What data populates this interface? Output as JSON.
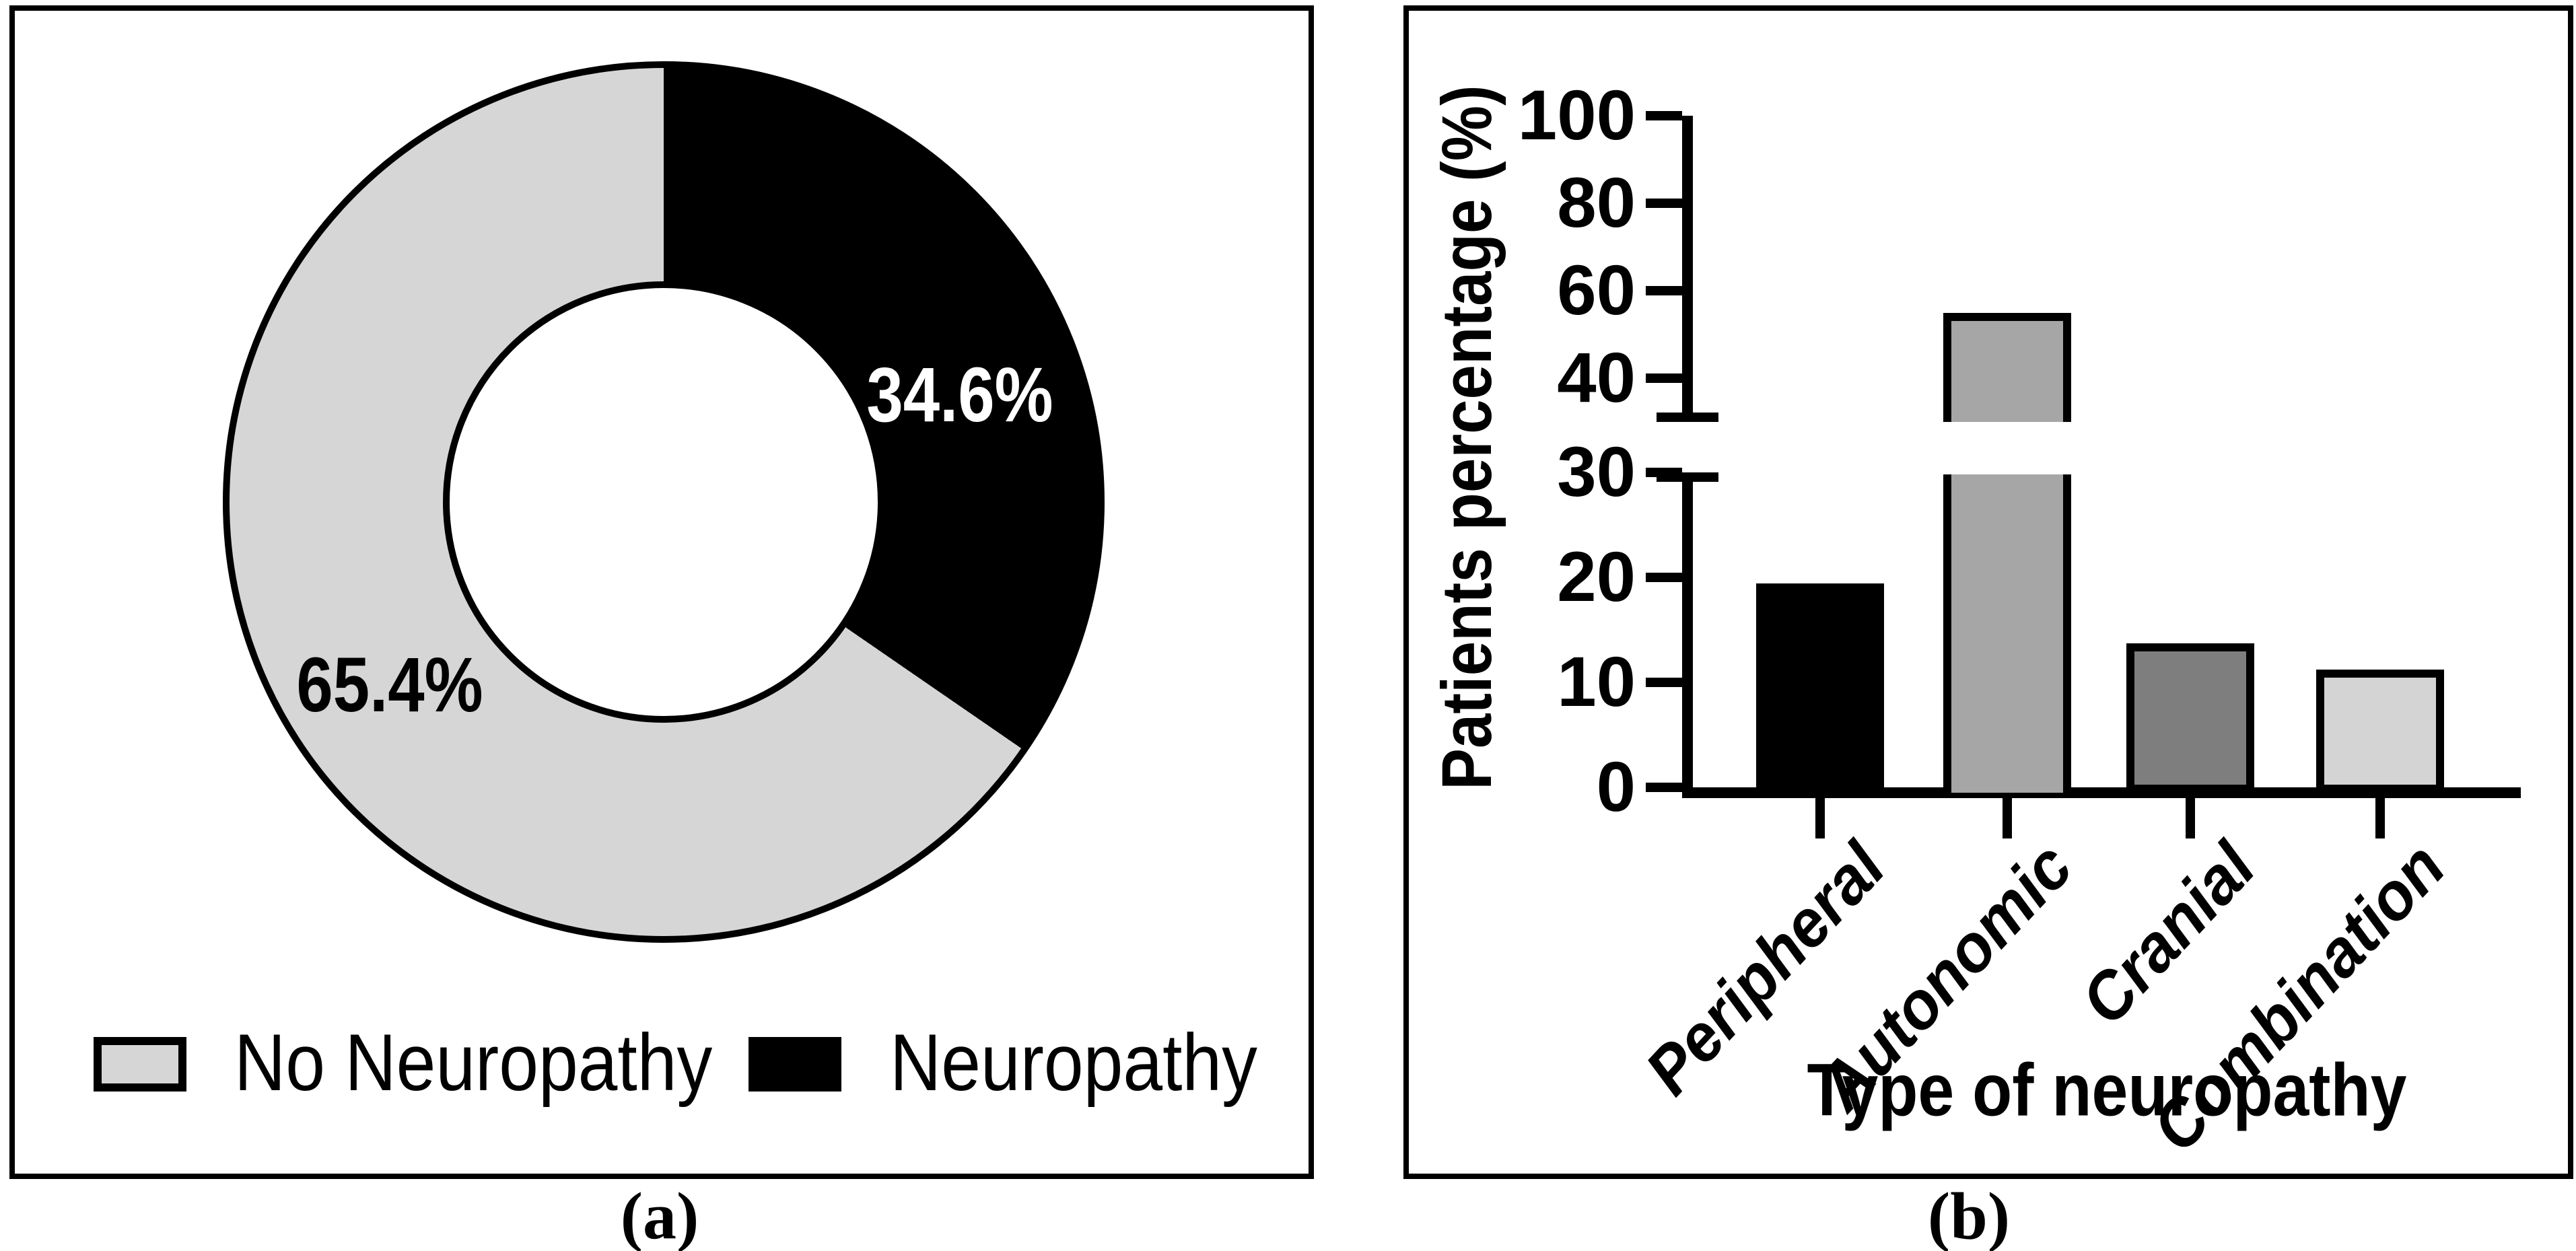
{
  "figure": {
    "panel_a_caption": "(a)",
    "panel_b_caption": "(b)",
    "background": "#ffffff",
    "border_color": "#000000"
  },
  "chart_data": [
    {
      "panel": "a",
      "type": "pie",
      "style": "donut",
      "start_angle_deg": 0,
      "direction": "clockwise",
      "slices": [
        {
          "label": "Neuropathy",
          "value": 34.6,
          "display": "34.6%",
          "color": "#000000",
          "label_color": "#ffffff"
        },
        {
          "label": "No Neuropathy",
          "value": 65.4,
          "display": "65.4%",
          "color": "#d6d6d6",
          "label_color": "#000000"
        }
      ],
      "legend": [
        {
          "label": "No Neuropathy",
          "color": "#d6d6d6"
        },
        {
          "label": "Neuropathy",
          "color": "#000000"
        }
      ]
    },
    {
      "panel": "b",
      "type": "bar",
      "xlabel": "Type of neuropathy",
      "ylabel": "Patients percentage (%)",
      "categories": [
        "Peripheral",
        "Autonomic",
        "Cranial",
        "Combination"
      ],
      "values": [
        19.4,
        54.9,
        13.7,
        11.2
      ],
      "bar_colors": [
        "#000000",
        "#a6a6a6",
        "#7e7e7e",
        "#d4d4d4"
      ],
      "bar_outline": "#000000",
      "grid": false,
      "axis_break": {
        "lower_range": [
          0,
          30
        ],
        "upper_range": [
          40,
          100
        ],
        "lower_ticks": [
          0,
          10,
          20,
          30
        ],
        "upper_ticks": [
          40,
          60,
          80,
          100
        ]
      }
    }
  ]
}
